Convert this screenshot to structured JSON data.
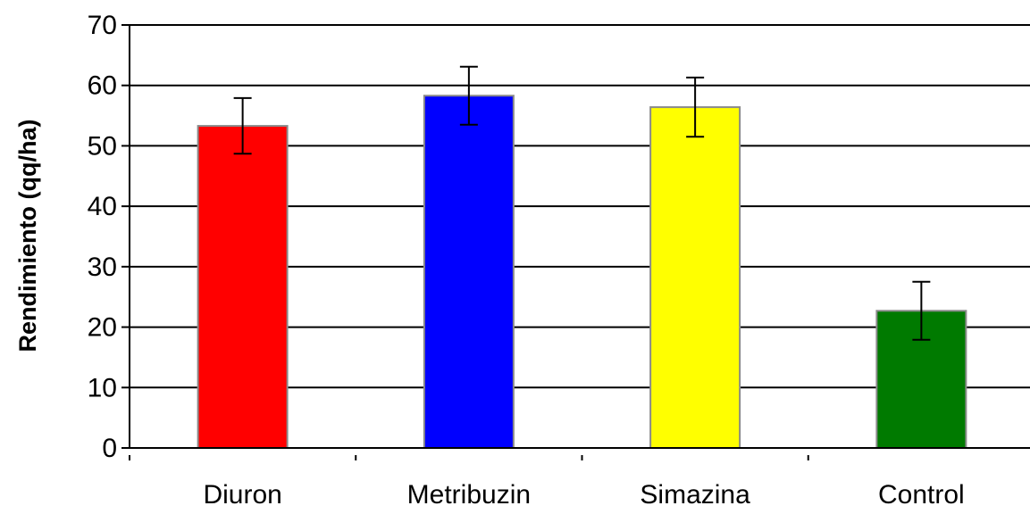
{
  "chart_data": {
    "type": "bar",
    "title": "",
    "xlabel": "",
    "ylabel": "Rendimiento (qq/ha)",
    "ylim": [
      0,
      70
    ],
    "yticks": [
      0,
      10,
      20,
      30,
      40,
      50,
      60,
      70
    ],
    "grid": "horizontal",
    "legend": "none",
    "categories": [
      "Diuron",
      "Metribuzin",
      "Simazina",
      "Control"
    ],
    "values": [
      53.3,
      58.3,
      56.4,
      22.7
    ],
    "error_bars": [
      4.6,
      4.8,
      4.9,
      4.8
    ],
    "colors": [
      "#ff0000",
      "#0000ff",
      "#ffff00",
      "#007a00"
    ]
  }
}
